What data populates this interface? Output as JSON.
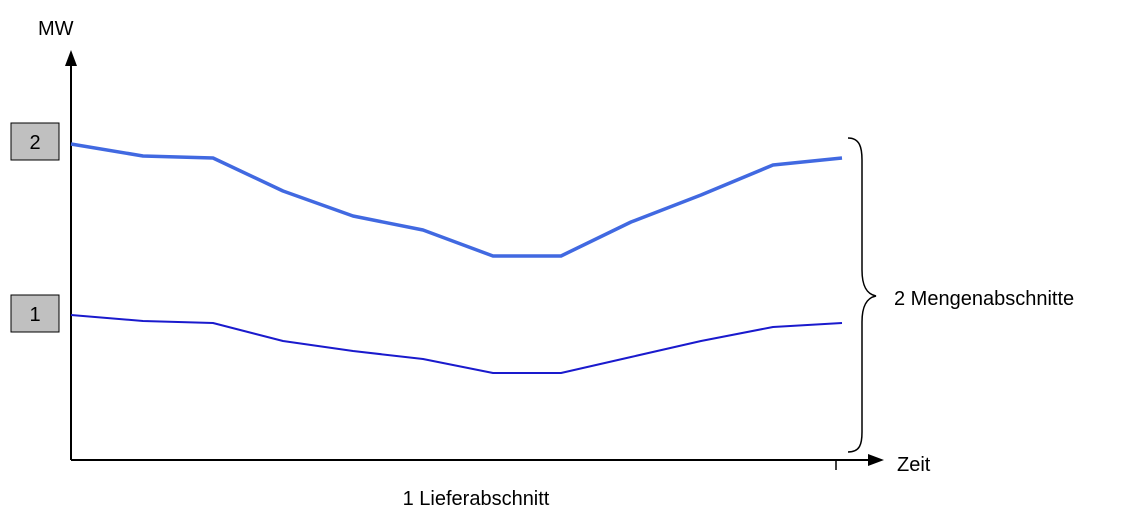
{
  "axes": {
    "y_label": "MW",
    "x_label": "Zeit"
  },
  "boxes": [
    {
      "label": "2"
    },
    {
      "label": "1"
    }
  ],
  "annotations": {
    "quantity_sections": "2 Mengenabschnitte",
    "delivery_section": "1 Lieferabschnitt"
  },
  "colors": {
    "upper_line": "#4169E1",
    "lower_line": "#1A1ACD",
    "box_fill": "#C0C0C0",
    "axis": "#000000"
  }
}
